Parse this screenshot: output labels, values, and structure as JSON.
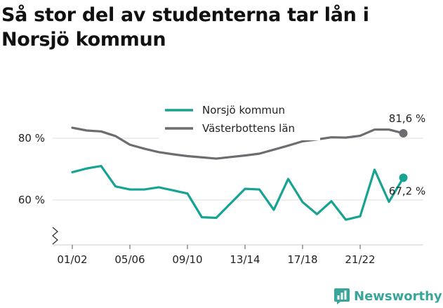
{
  "title": "Så stor del av studenterna tar lån i Norsjö kommun",
  "brand": {
    "name": "Newsworthy",
    "icon": "bar-chart-logo-icon"
  },
  "chart_data": {
    "type": "line",
    "x": [
      "01/02",
      "02/03",
      "03/04",
      "04/05",
      "05/06",
      "06/07",
      "07/08",
      "08/09",
      "09/10",
      "10/11",
      "11/12",
      "12/13",
      "13/14",
      "14/15",
      "15/16",
      "16/17",
      "17/18",
      "18/19",
      "19/20",
      "20/21",
      "21/22",
      "22/23",
      "23/24",
      "24/25"
    ],
    "x_ticks": [
      "01/02",
      "05/06",
      "09/10",
      "13/14",
      "17/18",
      "21/22"
    ],
    "y_ticks": [
      {
        "value": 60,
        "label": "60 %"
      },
      {
        "value": 80,
        "label": "80 %"
      }
    ],
    "ylim": [
      47,
      87
    ],
    "axis_break": true,
    "grid": true,
    "legend_position": "top-center",
    "series": [
      {
        "name": "Norsjö kommun",
        "color": "#17a392",
        "values": [
          69.0,
          70.2,
          71.0,
          64.4,
          63.4,
          63.4,
          64.1,
          63.1,
          62.1,
          54.4,
          54.2,
          58.9,
          63.6,
          63.4,
          56.8,
          66.8,
          59.3,
          55.4,
          59.6,
          53.6,
          54.7,
          69.8,
          59.4,
          67.2
        ],
        "end_label": "67,2 %"
      },
      {
        "name": "Västerbottens län",
        "color": "#6c6d71",
        "values": [
          83.4,
          82.5,
          82.2,
          80.7,
          77.9,
          76.6,
          75.5,
          74.8,
          74.2,
          73.8,
          73.4,
          73.9,
          74.4,
          75.0,
          76.3,
          77.6,
          79.0,
          79.6,
          80.3,
          80.2,
          80.8,
          82.8,
          82.8,
          81.6
        ],
        "end_label": "81,6 %"
      }
    ]
  }
}
